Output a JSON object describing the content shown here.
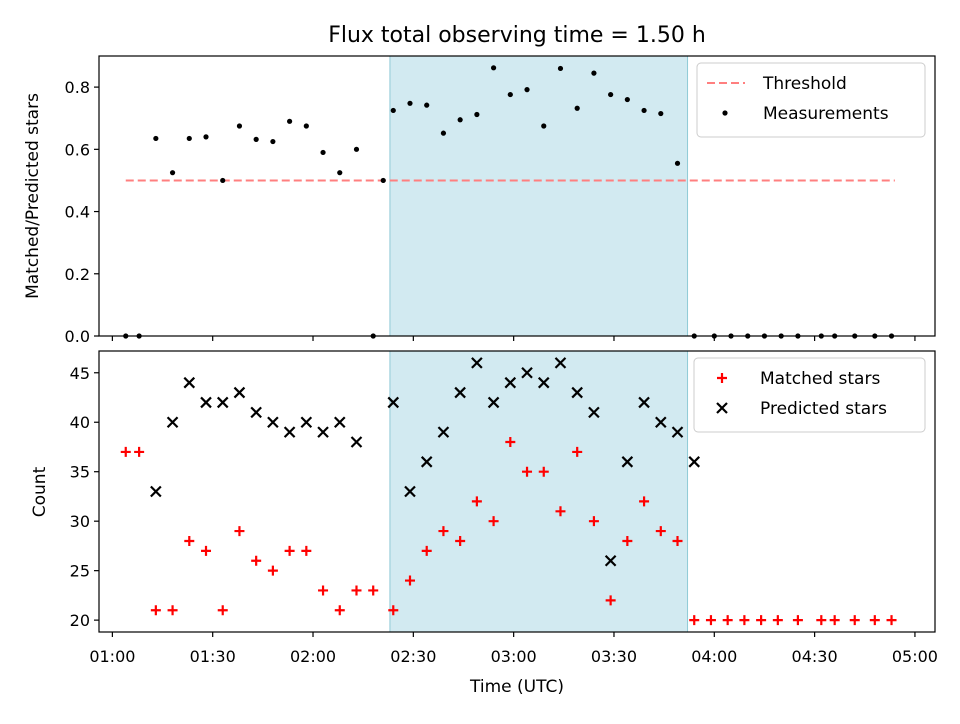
{
  "chart_data": [
    {
      "type": "scatter",
      "title": "Flux total observing time = 1.50 h",
      "ylabel": "Matched/Predicted stars",
      "xlabel": "",
      "ylim": [
        0,
        0.9
      ],
      "yticks": [
        0.0,
        0.2,
        0.4,
        0.6,
        0.8
      ],
      "ytick_labels": [
        "0.0",
        "0.2",
        "0.4",
        "0.6",
        "0.8"
      ],
      "xlim_minutes": [
        56,
        306
      ],
      "xticks_minutes": [
        60,
        90,
        120,
        150,
        180,
        210,
        240,
        270,
        300
      ],
      "xtick_labels": [],
      "shaded_span": {
        "start_minutes": 143,
        "end_minutes": 232,
        "color": "#add8e6"
      },
      "legend": {
        "placement": "top-right"
      },
      "series": [
        {
          "name": "Threshold",
          "kind": "line",
          "style": "dashed",
          "color": "#ff7f7f",
          "x_minutes": [
            64,
            294
          ],
          "y": [
            0.5,
            0.5
          ]
        },
        {
          "name": "Measurements",
          "kind": "scatter",
          "marker": "dot",
          "color": "#000000",
          "x_minutes": [
            64,
            68,
            73,
            78,
            83,
            88,
            93,
            98,
            103,
            108,
            113,
            118,
            123,
            128,
            133,
            138,
            141,
            144,
            149,
            154,
            159,
            164,
            169,
            174,
            179,
            184,
            189,
            194,
            199,
            204,
            209,
            214,
            219,
            224,
            229,
            234,
            240,
            245,
            250,
            255,
            260,
            265,
            272,
            276,
            282,
            288,
            293
          ],
          "y": [
            0.0,
            0.0,
            0.635,
            0.525,
            0.635,
            0.64,
            0.5,
            0.675,
            0.632,
            0.625,
            0.69,
            0.675,
            0.59,
            0.525,
            0.6,
            0.0,
            0.5,
            0.725,
            0.748,
            0.742,
            0.652,
            0.695,
            0.712,
            0.862,
            0.776,
            0.792,
            0.675,
            0.86,
            0.732,
            0.845,
            0.776,
            0.76,
            0.725,
            0.715,
            0.555,
            0.0,
            0.0,
            0.0,
            0.0,
            0.0,
            0.0,
            0.0,
            0.0,
            0.0,
            0.0,
            0.0,
            0.0
          ]
        }
      ]
    },
    {
      "type": "scatter",
      "title": "",
      "ylabel": "Count",
      "xlabel": "Time (UTC)",
      "ylim": [
        18.8,
        47.2
      ],
      "yticks": [
        20,
        25,
        30,
        35,
        40,
        45
      ],
      "ytick_labels": [
        "20",
        "25",
        "30",
        "35",
        "40",
        "45"
      ],
      "xlim_minutes": [
        56,
        306
      ],
      "xticks_minutes": [
        60,
        90,
        120,
        150,
        180,
        210,
        240,
        270,
        300
      ],
      "xtick_labels": [
        "01:00",
        "01:30",
        "02:00",
        "02:30",
        "03:00",
        "03:30",
        "04:00",
        "04:30",
        "05:00"
      ],
      "shaded_span": {
        "start_minutes": 143,
        "end_minutes": 232,
        "color": "#add8e6"
      },
      "legend": {
        "placement": "top-right"
      },
      "series": [
        {
          "name": "Matched stars",
          "kind": "scatter",
          "marker": "plus",
          "color": "#ff0000",
          "x_minutes": [
            64,
            68,
            73,
            78,
            83,
            88,
            93,
            98,
            103,
            108,
            113,
            118,
            123,
            128,
            133,
            138,
            144,
            149,
            154,
            159,
            164,
            169,
            174,
            179,
            184,
            189,
            194,
            199,
            204,
            209,
            214,
            219,
            224,
            229,
            234,
            239,
            244,
            249,
            254,
            259,
            265,
            272,
            276,
            282,
            288,
            293
          ],
          "y": [
            37,
            37,
            21,
            21,
            28,
            27,
            21,
            29,
            26,
            25,
            27,
            27,
            23,
            21,
            23,
            23,
            21,
            24,
            27,
            29,
            28,
            32,
            30,
            38,
            35,
            35,
            31,
            37,
            30,
            22,
            28,
            32,
            29,
            28,
            20,
            20,
            20,
            20,
            20,
            20,
            20,
            20,
            20,
            20,
            20,
            20
          ]
        },
        {
          "name": "Predicted stars",
          "kind": "scatter",
          "marker": "x",
          "color": "#000000",
          "x_minutes": [
            73,
            78,
            83,
            88,
            93,
            98,
            103,
            108,
            113,
            118,
            123,
            128,
            133,
            144,
            149,
            154,
            159,
            164,
            169,
            174,
            179,
            184,
            189,
            194,
            199,
            204,
            209,
            214,
            219,
            224,
            229,
            234
          ],
          "y": [
            33,
            40,
            44,
            42,
            42,
            43,
            41,
            40,
            39,
            40,
            39,
            40,
            38,
            42,
            33,
            36,
            39,
            43,
            46,
            42,
            44,
            45,
            44,
            46,
            43,
            41,
            26,
            36,
            42,
            40,
            39,
            36
          ]
        }
      ]
    }
  ]
}
